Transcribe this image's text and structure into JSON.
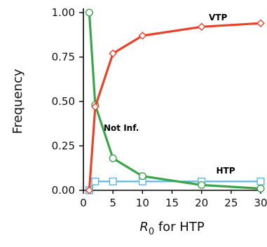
{
  "chart_data": {
    "type": "line",
    "ylabel": "Frequency",
    "xlabel_italic": "R",
    "xlabel_subscript": "0",
    "xlabel_rest": " for HTP",
    "xlim": [
      0,
      30
    ],
    "ylim": [
      0,
      1
    ],
    "x_ticks": [
      0,
      5,
      10,
      15,
      20,
      25,
      30
    ],
    "y_ticks": [
      "0.00",
      "0.25",
      "0.50",
      "0.75",
      "1.00"
    ],
    "grid": false,
    "series": [
      {
        "name": "VTP",
        "color": "#e8432a",
        "marker": "diamond",
        "x": [
          1,
          2,
          5,
          10,
          20,
          30
        ],
        "y": [
          0.0,
          0.47,
          0.77,
          0.87,
          0.92,
          0.94
        ]
      },
      {
        "name": "Not Inf.",
        "color": "#3aa64a",
        "marker": "circle",
        "x": [
          1,
          2,
          5,
          10,
          20,
          30
        ],
        "y": [
          1.0,
          0.48,
          0.18,
          0.08,
          0.03,
          0.01
        ]
      },
      {
        "name": "HTP",
        "color": "#5ab4e5",
        "marker": "square",
        "x": [
          1,
          2,
          5,
          10,
          20,
          30
        ],
        "y": [
          0.0,
          0.05,
          0.05,
          0.05,
          0.05,
          0.05
        ]
      }
    ]
  }
}
